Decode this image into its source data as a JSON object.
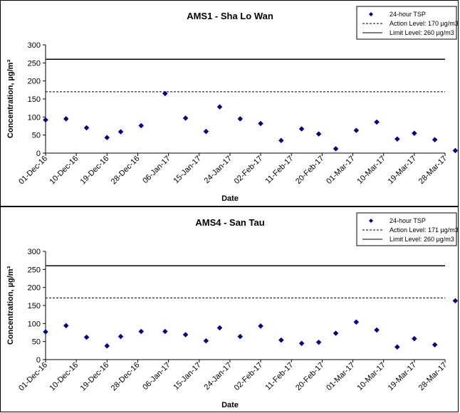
{
  "chart_data": [
    {
      "type": "scatter",
      "title": "AMS1 - Sha Lo Wan",
      "xlabel": "Date",
      "ylabel": "Concentration, µg/m³",
      "ylim": [
        0,
        300
      ],
      "yticks": [
        "0",
        "50",
        "100",
        "150",
        "200",
        "250",
        "300"
      ],
      "xlim": [
        "2016-12-01",
        "2017-03-28"
      ],
      "xticks": [
        "01-Dec-16",
        "10-Dec-16",
        "19-Dec-16",
        "28-Dec-16",
        "06-Jan-17",
        "15-Jan-17",
        "24-Jan-17",
        "02-Feb-17",
        "11-Feb-17",
        "20-Feb-17",
        "01-Mar-17",
        "10-Mar-17",
        "19-Mar-17",
        "28-Mar-17"
      ],
      "series": [
        {
          "name": "24-hour TSP",
          "color": "#000080",
          "x": [
            "2016-12-01",
            "2016-12-07",
            "2016-12-13",
            "2016-12-19",
            "2016-12-23",
            "2016-12-29",
            "2017-01-05",
            "2017-01-11",
            "2017-01-17",
            "2017-01-21",
            "2017-01-27",
            "2017-02-02",
            "2017-02-08",
            "2017-02-14",
            "2017-02-19",
            "2017-02-24",
            "2017-03-02",
            "2017-03-08",
            "2017-03-14",
            "2017-03-19",
            "2017-03-25",
            "2017-03-31"
          ],
          "y": [
            92,
            95,
            70,
            43,
            59,
            76,
            165,
            97,
            60,
            128,
            95,
            82,
            35,
            67,
            53,
            12,
            63,
            86,
            39,
            55,
            37,
            7
          ]
        }
      ],
      "reference_lines": [
        {
          "name": "Action Level: 170 µg/m3",
          "value": 170,
          "style": "dashed"
        },
        {
          "name": "Limit Level: 260 µg/m3",
          "value": 260,
          "style": "solid"
        }
      ],
      "legend": "top-right",
      "grid": false
    },
    {
      "type": "scatter",
      "title": "AMS4 - San Tau",
      "xlabel": "Date",
      "ylabel": "Concentration, µg/m³",
      "ylim": [
        0,
        300
      ],
      "yticks": [
        "0",
        "50",
        "100",
        "150",
        "200",
        "250",
        "300"
      ],
      "xlim": [
        "2016-12-01",
        "2017-03-28"
      ],
      "xticks": [
        "01-Dec-16",
        "10-Dec-16",
        "19-Dec-16",
        "28-Dec-16",
        "06-Jan-17",
        "15-Jan-17",
        "24-Jan-17",
        "02-Feb-17",
        "11-Feb-17",
        "20-Feb-17",
        "01-Mar-17",
        "10-Mar-17",
        "19-Mar-17",
        "28-Mar-17"
      ],
      "series": [
        {
          "name": "24-hour TSP",
          "color": "#000080",
          "x": [
            "2016-12-01",
            "2016-12-07",
            "2016-12-13",
            "2016-12-19",
            "2016-12-23",
            "2016-12-29",
            "2017-01-05",
            "2017-01-11",
            "2017-01-17",
            "2017-01-21",
            "2017-01-27",
            "2017-02-02",
            "2017-02-08",
            "2017-02-14",
            "2017-02-19",
            "2017-02-24",
            "2017-03-02",
            "2017-03-08",
            "2017-03-14",
            "2017-03-19",
            "2017-03-25",
            "2017-03-31"
          ],
          "y": [
            77,
            94,
            62,
            38,
            64,
            78,
            78,
            69,
            52,
            88,
            64,
            93,
            54,
            45,
            48,
            73,
            104,
            82,
            35,
            58,
            41,
            163
          ]
        }
      ],
      "reference_lines": [
        {
          "name": "Action Level: 171 µg/m3",
          "value": 171,
          "style": "dashed"
        },
        {
          "name": "Limit Level: 260 µg/m3",
          "value": 260,
          "style": "solid"
        }
      ],
      "legend": "top-right",
      "grid": false
    }
  ]
}
